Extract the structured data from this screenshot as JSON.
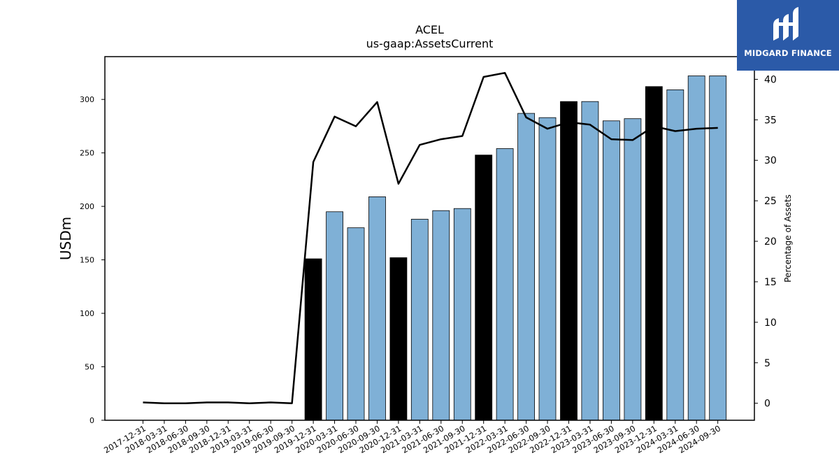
{
  "chart_data": {
    "type": "bar",
    "title": "ACEL",
    "subtitle": "us-gaap:AssetsCurrent",
    "ylabel": "USDm",
    "y2label": "Percentage of Assets",
    "ylim": [
      0,
      340
    ],
    "y2lim": [
      -2.1,
      42.8
    ],
    "yticks": [
      0,
      50,
      100,
      150,
      200,
      250,
      300
    ],
    "y2ticks": [
      0,
      5,
      10,
      15,
      20,
      25,
      30,
      35,
      40
    ],
    "grid": false,
    "categories": [
      "2017-12-31",
      "2018-03-31",
      "2018-06-30",
      "2018-09-30",
      "2018-12-31",
      "2019-03-31",
      "2019-06-30",
      "2019-09-30",
      "2019-12-31",
      "2020-03-31",
      "2020-06-30",
      "2020-09-30",
      "2020-12-31",
      "2021-03-31",
      "2021-06-30",
      "2021-09-30",
      "2021-12-31",
      "2022-03-31",
      "2022-06-30",
      "2022-09-30",
      "2022-12-31",
      "2023-03-31",
      "2023-06-30",
      "2023-09-30",
      "2023-12-31",
      "2024-03-31",
      "2024-06-30",
      "2024-09-30"
    ],
    "series": [
      {
        "values": [
          null,
          null,
          null,
          null,
          null,
          null,
          null,
          null,
          151,
          195,
          180,
          209,
          152,
          188,
          196,
          198,
          248,
          254,
          287,
          283,
          298,
          298,
          280,
          282,
          312,
          309,
          322,
          322
        ],
        "colors": [
          "#7fb0d6",
          "#7fb0d6",
          "#7fb0d6",
          "#7fb0d6",
          "#7fb0d6",
          "#7fb0d6",
          "#7fb0d6",
          "#7fb0d6",
          "#000000",
          "#7fb0d6",
          "#7fb0d6",
          "#7fb0d6",
          "#000000",
          "#7fb0d6",
          "#7fb0d6",
          "#7fb0d6",
          "#000000",
          "#7fb0d6",
          "#7fb0d6",
          "#7fb0d6",
          "#000000",
          "#7fb0d6",
          "#7fb0d6",
          "#7fb0d6",
          "#000000",
          "#7fb0d6",
          "#7fb0d6",
          "#7fb0d6"
        ]
      },
      {
        "type": "line",
        "axis": "right",
        "color": "#000000",
        "values": [
          0.1,
          0.0,
          0.0,
          0.1,
          0.1,
          0.0,
          0.1,
          0.0,
          29.8,
          35.4,
          34.2,
          37.2,
          27.1,
          31.9,
          32.6,
          33.0,
          40.3,
          40.8,
          35.3,
          33.9,
          34.7,
          34.4,
          32.6,
          32.5,
          34.2,
          33.6,
          33.9,
          34.0
        ]
      }
    ]
  },
  "logo": {
    "text": "MIDGARD FINANCE",
    "background": "#2b5aa8"
  }
}
